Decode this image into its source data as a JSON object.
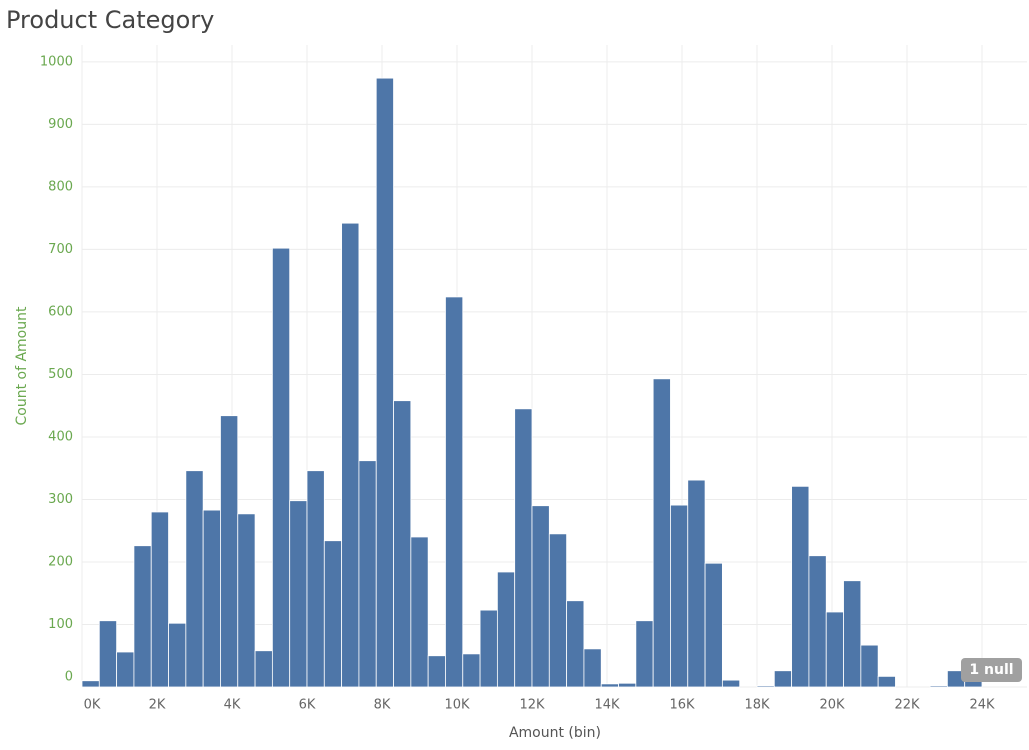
{
  "chart_data": {
    "type": "histogram",
    "title": "Product Category",
    "x_label": "Amount (bin)",
    "y_label": "Count of Amount",
    "null_indicator": "1 null",
    "color": "#4e76a8",
    "grid": true,
    "bins": [
      0,
      461.5,
      923.1,
      1384.6,
      1846.2,
      2307.7,
      2769.2,
      3230.8,
      3692.3,
      4153.8,
      4615.4,
      5076.9,
      5538.5,
      6000,
      6461.5,
      6923.1,
      7384.6,
      7846.2,
      8307.7,
      8769.2,
      9230.8,
      9692.3,
      10153.8,
      10615.4,
      11076.9,
      11538.5,
      12000,
      12461.5,
      12923.1,
      13384.6,
      13846.2,
      14307.7,
      14769.2,
      15230.8,
      15692.3,
      16153.8,
      16615.4,
      17076.9,
      17538.5,
      18000,
      18461.5,
      18923.1,
      19384.6,
      19846.2,
      20307.7,
      20769.2,
      21230.8,
      21692.3,
      22153.8,
      22615.4,
      23076.9,
      23538.5,
      24000
    ],
    "values": [
      10,
      106,
      56,
      226,
      280,
      102,
      346,
      283,
      434,
      277,
      58,
      702,
      298,
      346,
      234,
      742,
      362,
      974,
      458,
      240,
      50,
      624,
      53,
      123,
      184,
      445,
      290,
      245,
      138,
      61,
      5,
      6,
      106,
      493,
      291,
      331,
      198,
      11,
      0,
      2,
      26,
      321,
      210,
      120,
      170,
      67,
      17,
      0,
      0,
      2,
      26,
      26
    ],
    "xlim": [
      0,
      25200
    ],
    "ylim": [
      0,
      1027
    ],
    "xticks": [
      {
        "value": 0,
        "label": "0K"
      },
      {
        "value": 2000,
        "label": "2K"
      },
      {
        "value": 4000,
        "label": "4K"
      },
      {
        "value": 6000,
        "label": "6K"
      },
      {
        "value": 8000,
        "label": "8K"
      },
      {
        "value": 10000,
        "label": "10K"
      },
      {
        "value": 12000,
        "label": "12K"
      },
      {
        "value": 14000,
        "label": "14K"
      },
      {
        "value": 16000,
        "label": "16K"
      },
      {
        "value": 18000,
        "label": "18K"
      },
      {
        "value": 20000,
        "label": "20K"
      },
      {
        "value": 22000,
        "label": "22K"
      },
      {
        "value": 24000,
        "label": "24K"
      }
    ],
    "yticks": [
      0,
      100,
      200,
      300,
      400,
      500,
      600,
      700,
      800,
      900,
      1000
    ]
  }
}
